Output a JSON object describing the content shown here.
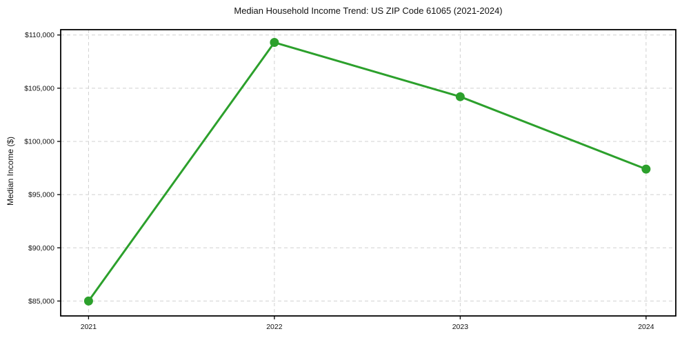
{
  "page": {
    "background": "#ffffff"
  },
  "chart_data": {
    "type": "line",
    "title": "Median Household Income Trend: US ZIP Code 61065 (2021-2024)",
    "xlabel": "",
    "ylabel": "Median Income ($)",
    "x": [
      2021,
      2022,
      2023,
      2024
    ],
    "x_tick_labels": [
      "2021",
      "2022",
      "2023",
      "2024"
    ],
    "series": [
      {
        "values": [
          85000,
          109300,
          104200,
          97400
        ],
        "color": "#2ca02c",
        "marker": "circle",
        "line_width": 3
      }
    ],
    "y_ticks": [
      85000,
      90000,
      95000,
      100000,
      105000,
      110000
    ],
    "y_tick_labels": [
      "$85,000",
      "$90,000",
      "$95,000",
      "$100,000",
      "$105,000",
      "$110,000"
    ],
    "ylim": [
      83600,
      110500
    ],
    "xlim": [
      2020.85,
      2024.16
    ],
    "grid": true,
    "grid_style": "dashed",
    "legend_position": "none"
  },
  "colors": {
    "line": "#2ca02c",
    "grid": "#d0d0d0",
    "spine": "#000000",
    "text": "#111111",
    "background": "#ffffff"
  }
}
